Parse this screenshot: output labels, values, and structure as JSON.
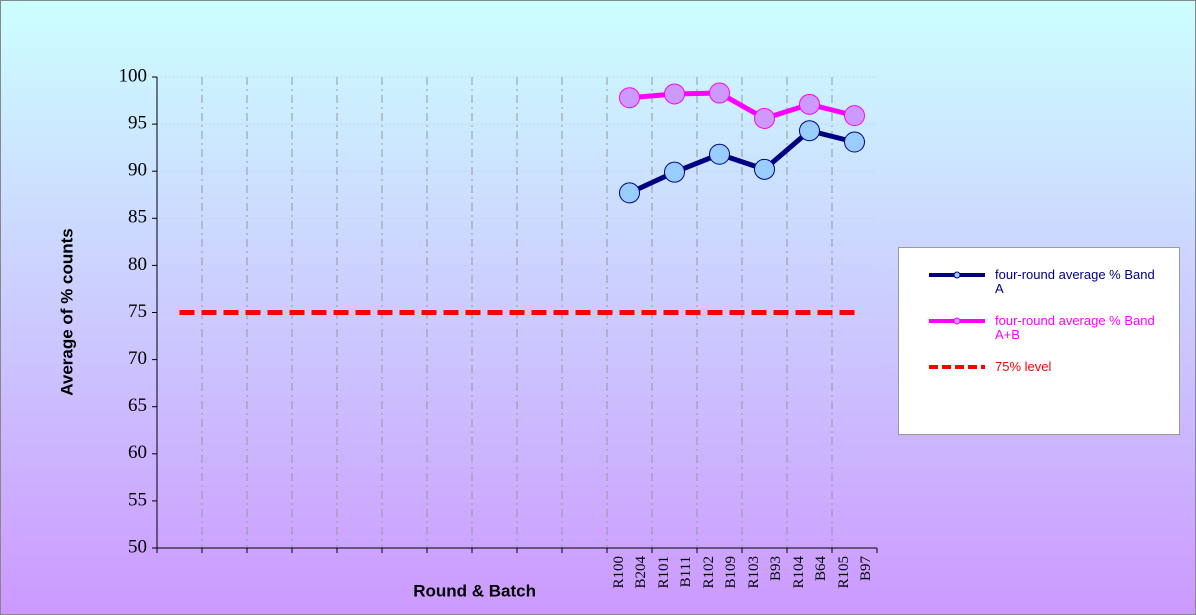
{
  "chart_data": {
    "type": "line",
    "x_label": "Round & Batch",
    "y_label": "Average of % counts",
    "categories": [
      null,
      null,
      null,
      null,
      null,
      null,
      null,
      null,
      null,
      null,
      [
        "R100",
        "B204"
      ],
      [
        "R101",
        "B111"
      ],
      [
        "R102",
        "B109"
      ],
      [
        "R103",
        "B93"
      ],
      [
        "R104",
        "B64"
      ],
      [
        "R105",
        "B97"
      ]
    ],
    "series": [
      {
        "name": "four-round average % Band A",
        "color": "#000080",
        "marker_fill": "#99ccff",
        "marker": true,
        "dashed": false,
        "values": [
          null,
          null,
          null,
          null,
          null,
          null,
          null,
          null,
          null,
          null,
          87.7,
          89.9,
          91.8,
          90.2,
          94.3,
          93.1
        ]
      },
      {
        "name": "four-round average % Band A+B",
        "color": "#ff00ff",
        "marker_fill": "#cc99ff",
        "marker": true,
        "dashed": false,
        "values": [
          null,
          null,
          null,
          null,
          null,
          null,
          null,
          null,
          null,
          null,
          97.8,
          98.2,
          98.3,
          95.6,
          97.1,
          95.9
        ]
      },
      {
        "name": "75% level",
        "color": "#ff0000",
        "marker": false,
        "dashed": true,
        "values": [
          75,
          75,
          75,
          75,
          75,
          75,
          75,
          75,
          75,
          75,
          75,
          75,
          75,
          75,
          75,
          75
        ]
      }
    ],
    "ylim": [
      50,
      100
    ],
    "yticks": [
      50,
      55,
      60,
      65,
      70,
      75,
      80,
      85,
      90,
      95,
      100
    ],
    "grid": true,
    "legend": "right"
  }
}
